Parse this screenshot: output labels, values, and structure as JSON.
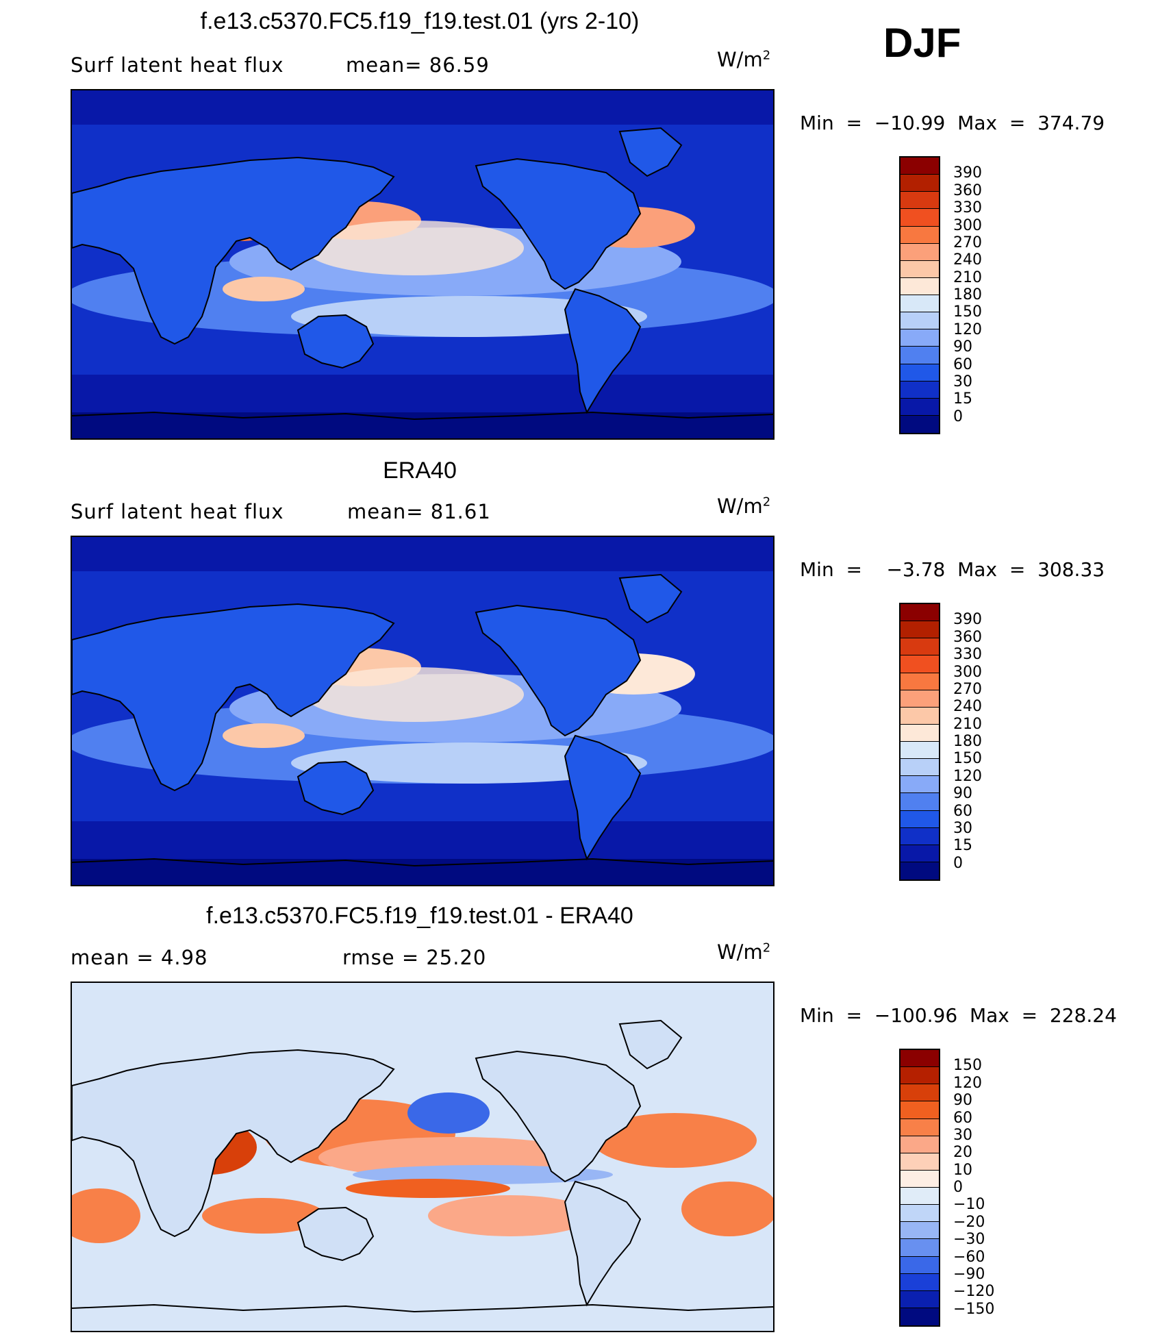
{
  "season": "DJF",
  "units": "W/m",
  "units_exp": "2",
  "panels": [
    {
      "title": "f.e13.c5370.FC5.f19_f19.test.01 (yrs 2-10)",
      "left_label": "Surf  latent  heat  flux",
      "right_label": "mean=   86.59",
      "minmax": "Min  =  −10.99  Max  =  374.79",
      "colorbar_labels": [
        "390",
        "360",
        "330",
        "300",
        "270",
        "240",
        "210",
        "180",
        "150",
        "120",
        "90",
        "60",
        "30",
        "15",
        "0"
      ],
      "map_type": "model"
    },
    {
      "title": "ERA40",
      "left_label": "Surf  latent  heat  flux",
      "right_label": "mean=   81.61",
      "minmax": "Min  =    −3.78  Max  =  308.33",
      "colorbar_labels": [
        "390",
        "360",
        "330",
        "300",
        "270",
        "240",
        "210",
        "180",
        "150",
        "120",
        "90",
        "60",
        "30",
        "15",
        "0"
      ],
      "map_type": "obs"
    },
    {
      "title": "f.e13.c5370.FC5.f19_f19.test.01 - ERA40",
      "left_label": "mean  =     4.98",
      "right_label": "rmse  =    25.20",
      "minmax": "Min  =  −100.96  Max  =  228.24",
      "colorbar_labels": [
        "150",
        "120",
        "90",
        "60",
        "30",
        "20",
        "10",
        "0",
        "−10",
        "−20",
        "−30",
        "−60",
        "−90",
        "−120",
        "−150"
      ],
      "map_type": "diff"
    }
  ],
  "colors": {
    "abs_scale": [
      "#8b0000",
      "#b22000",
      "#d83a10",
      "#f05020",
      "#f87840",
      "#fba07a",
      "#fcc8a8",
      "#fde8d8",
      "#d8e8f8",
      "#b8d0f8",
      "#88aaf8",
      "#5080f0",
      "#2058e8",
      "#1030c8",
      "#0818a8",
      "#000a80"
    ],
    "diff_scale": [
      "#8b0000",
      "#b52000",
      "#d8400a",
      "#f06020",
      "#f88048",
      "#fba888",
      "#fdd0b8",
      "#fdeee4",
      "#e0ecf8",
      "#c0d6f8",
      "#98b6f5",
      "#6890f0",
      "#3a68e8",
      "#1a40d8",
      "#0a20b0",
      "#000a80"
    ]
  }
}
